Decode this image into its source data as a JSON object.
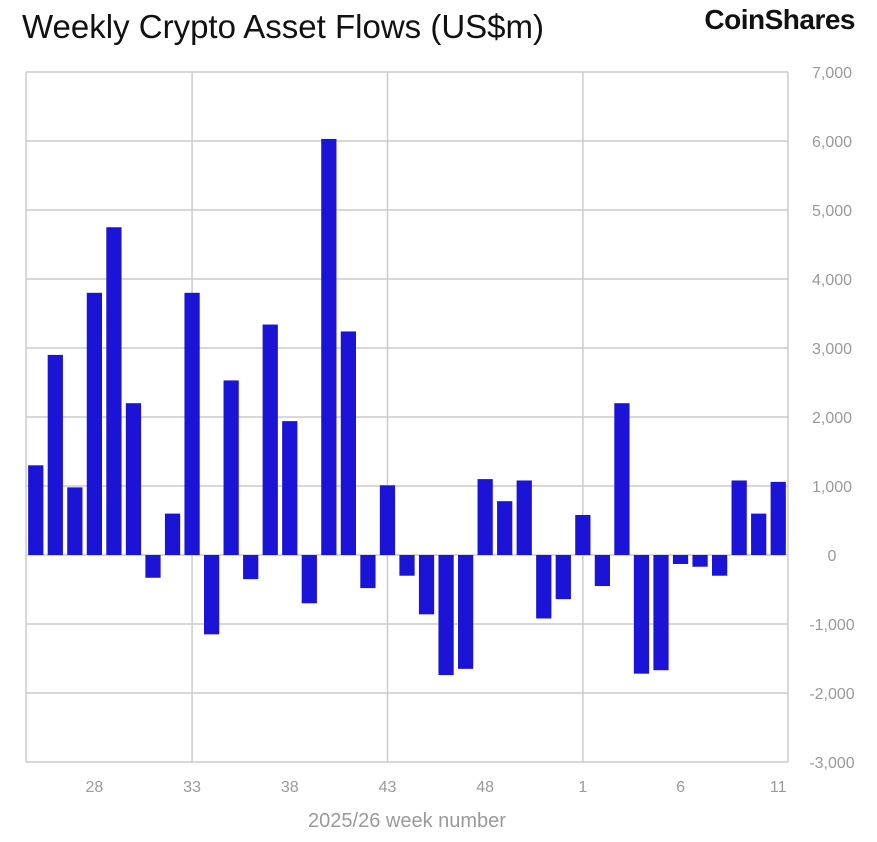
{
  "header": {
    "title": "Weekly Crypto Asset Flows (US$m)",
    "brand": "CoinShares"
  },
  "colors": {
    "bar": "#1b14d6",
    "grid": "#cccccc",
    "text": "#9a9a9a"
  },
  "chart_data": {
    "type": "bar",
    "title": "Weekly Crypto Asset Flows (US$m)",
    "xlabel": "2025/26 week number",
    "ylabel": "",
    "ylim": [
      -3000,
      7000
    ],
    "y_axis_position": "right",
    "grid": true,
    "yticks": [
      7000,
      6000,
      5000,
      4000,
      3000,
      2000,
      1000,
      0,
      -1000,
      -2000,
      -3000
    ],
    "ytick_labels": [
      "7,000",
      "6,000",
      "5,000",
      "4,000",
      "3,000",
      "2,000",
      "1,000",
      "0",
      "-1,000",
      "-2,000",
      "-3,000"
    ],
    "xtick_labels": [
      {
        "label": "28",
        "index": 3
      },
      {
        "label": "33",
        "index": 8
      },
      {
        "label": "38",
        "index": 13
      },
      {
        "label": "43",
        "index": 18
      },
      {
        "label": "48",
        "index": 23
      },
      {
        "label": "1",
        "index": 28
      },
      {
        "label": "6",
        "index": 33
      },
      {
        "label": "11",
        "index": 38
      }
    ],
    "categories": [
      "25",
      "26",
      "27",
      "28",
      "29",
      "30",
      "31",
      "32",
      "33",
      "34",
      "35",
      "36",
      "37",
      "38",
      "39",
      "40",
      "41",
      "42",
      "43",
      "44",
      "45",
      "46",
      "47",
      "48",
      "49",
      "50",
      "51",
      "52",
      "1",
      "2",
      "3",
      "4",
      "5",
      "6",
      "7",
      "8",
      "9",
      "10",
      "11"
    ],
    "values": [
      1300,
      2900,
      980,
      3800,
      4750,
      2200,
      -330,
      600,
      3800,
      -1150,
      2530,
      -350,
      3340,
      1940,
      -700,
      6030,
      3240,
      -480,
      1010,
      -300,
      -860,
      -1740,
      -1650,
      1100,
      780,
      1080,
      -920,
      -640,
      580,
      -450,
      2200,
      -1720,
      -1670,
      -130,
      -170,
      -300,
      1080,
      600,
      1060
    ]
  }
}
